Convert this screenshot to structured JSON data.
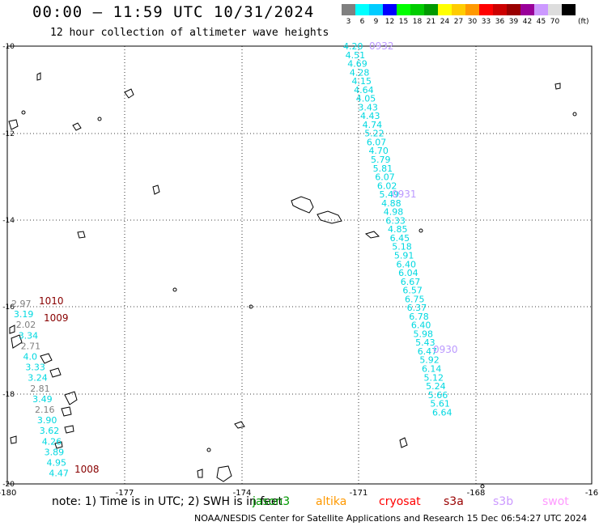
{
  "header": {
    "title": "00:00 – 11:59 UTC 10/31/2024",
    "subtitle": "12 hour collection of altimeter wave heights"
  },
  "legend": {
    "colors": [
      "#808080",
      "#00ffff",
      "#00ccff",
      "#0000ff",
      "#00ff00",
      "#00cc00",
      "#009900",
      "#ffff00",
      "#ffcc00",
      "#ff9900",
      "#ff0000",
      "#cc0000",
      "#990000",
      "#990099",
      "#cc99ff",
      "#dddddd",
      "#000000"
    ],
    "labels": [
      "3",
      "6",
      "9",
      "12",
      "15",
      "18",
      "21",
      "24",
      "27",
      "30",
      "33",
      "36",
      "39",
      "42",
      "45",
      "70"
    ],
    "unit": "(ft)"
  },
  "axes": {
    "lon_labels": [
      "-180",
      "-177",
      "-174",
      "-171",
      "-168",
      "-16"
    ],
    "lat_labels": [
      "-10",
      "-12",
      "-14",
      "-16",
      "-18",
      "-20"
    ]
  },
  "tracks": [
    {
      "time_label": "0932",
      "values": [
        "4.20",
        "4.51",
        "4.69",
        "4.28",
        "4.15",
        "4.64",
        "4.05",
        "3.43",
        "4.43",
        "4.74",
        "5.22",
        "6.07",
        "4.70",
        "5.79",
        "5.81"
      ]
    },
    {
      "time_label": "0931",
      "values": [
        "6.07",
        "6.02",
        "5.49",
        "4.88",
        "4.98",
        "6.33",
        "4.85",
        "6.45",
        "5.18",
        "5.91",
        "6.40",
        "6.04",
        "6.67",
        "6.57",
        "6.75"
      ]
    },
    {
      "time_label": "0930",
      "values": [
        "6.37",
        "6.78",
        "6.40",
        "5.98",
        "5.43",
        "6.47",
        "5.92",
        "6.14",
        "5.12",
        "5.24",
        "5.66",
        "5.61",
        "6.64"
      ]
    }
  ],
  "west_track": {
    "time_labels": [
      "1010",
      "1009",
      "1008"
    ],
    "values": [
      "2.97",
      "3.19",
      "2.02",
      "3.34",
      "2.71",
      "4.0",
      "3.33",
      "3.24",
      "2.81",
      "3.49",
      "2.16",
      "3.90",
      "3.62",
      "4.26",
      "3.89",
      "4.95",
      "4.47"
    ]
  },
  "footer": {
    "note": "note: 1) Time is in UTC; 2) SWH is in feet",
    "satellites": [
      "jason3",
      "altika",
      "cryosat",
      "s3a",
      "s3b",
      "swot"
    ],
    "credit": "NOAA/NESDIS Center for Satellite Applications and Research   15 Dec 06:54:27 UTC 2024"
  }
}
